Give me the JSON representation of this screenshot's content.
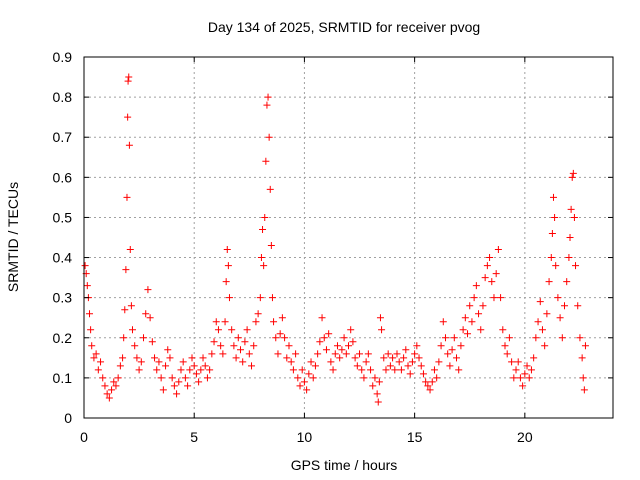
{
  "chart_data": {
    "type": "scatter",
    "title": "Day 134 of 2025, SRMTID for receiver pvog",
    "xlabel": "GPS time / hours",
    "ylabel": "SRMTID / TECUs",
    "xlim": [
      0,
      24
    ],
    "ylim": [
      0,
      0.9
    ],
    "x_ticks": [
      0,
      5,
      10,
      15,
      20
    ],
    "y_ticks": [
      0,
      0.1,
      0.2,
      0.3,
      0.4,
      0.5,
      0.6,
      0.7,
      0.8,
      0.9
    ],
    "x_tick_labels": [
      "0",
      "5",
      "10",
      "15",
      "20"
    ],
    "y_tick_labels": [
      "0",
      "0.1",
      "0.2",
      "0.3",
      "0.4",
      "0.5",
      "0.6",
      "0.7",
      "0.8",
      "0.9"
    ],
    "grid": true,
    "marker": "+",
    "color": "#ff0000",
    "series": [
      {
        "name": "SRMTID",
        "points": [
          [
            0.05,
            0.38
          ],
          [
            0.1,
            0.36
          ],
          [
            0.15,
            0.33
          ],
          [
            0.2,
            0.3
          ],
          [
            0.25,
            0.26
          ],
          [
            0.3,
            0.22
          ],
          [
            0.35,
            0.18
          ],
          [
            0.45,
            0.15
          ],
          [
            0.55,
            0.16
          ],
          [
            0.65,
            0.12
          ],
          [
            0.75,
            0.14
          ],
          [
            0.85,
            0.1
          ],
          [
            0.95,
            0.08
          ],
          [
            1.05,
            0.06
          ],
          [
            1.15,
            0.05
          ],
          [
            1.25,
            0.07
          ],
          [
            1.35,
            0.09
          ],
          [
            1.45,
            0.08
          ],
          [
            1.55,
            0.1
          ],
          [
            1.65,
            0.13
          ],
          [
            1.75,
            0.15
          ],
          [
            1.8,
            0.2
          ],
          [
            1.85,
            0.27
          ],
          [
            1.9,
            0.37
          ],
          [
            1.95,
            0.55
          ],
          [
            1.98,
            0.75
          ],
          [
            2.0,
            0.84
          ],
          [
            2.03,
            0.85
          ],
          [
            2.06,
            0.68
          ],
          [
            2.1,
            0.42
          ],
          [
            2.15,
            0.28
          ],
          [
            2.2,
            0.22
          ],
          [
            2.3,
            0.18
          ],
          [
            2.4,
            0.15
          ],
          [
            2.5,
            0.12
          ],
          [
            2.6,
            0.14
          ],
          [
            2.7,
            0.2
          ],
          [
            2.8,
            0.26
          ],
          [
            2.9,
            0.32
          ],
          [
            3.0,
            0.25
          ],
          [
            3.1,
            0.19
          ],
          [
            3.2,
            0.15
          ],
          [
            3.3,
            0.12
          ],
          [
            3.4,
            0.14
          ],
          [
            3.5,
            0.1
          ],
          [
            3.6,
            0.07
          ],
          [
            3.7,
            0.13
          ],
          [
            3.8,
            0.17
          ],
          [
            3.9,
            0.15
          ],
          [
            4.0,
            0.1
          ],
          [
            4.1,
            0.08
          ],
          [
            4.2,
            0.06
          ],
          [
            4.3,
            0.09
          ],
          [
            4.4,
            0.12
          ],
          [
            4.5,
            0.14
          ],
          [
            4.6,
            0.1
          ],
          [
            4.7,
            0.08
          ],
          [
            4.8,
            0.12
          ],
          [
            4.9,
            0.15
          ],
          [
            5.0,
            0.13
          ],
          [
            5.1,
            0.11
          ],
          [
            5.2,
            0.09
          ],
          [
            5.3,
            0.12
          ],
          [
            5.4,
            0.15
          ],
          [
            5.5,
            0.13
          ],
          [
            5.6,
            0.1
          ],
          [
            5.7,
            0.12
          ],
          [
            5.8,
            0.16
          ],
          [
            5.9,
            0.19
          ],
          [
            6.0,
            0.24
          ],
          [
            6.1,
            0.22
          ],
          [
            6.2,
            0.18
          ],
          [
            6.3,
            0.16
          ],
          [
            6.4,
            0.24
          ],
          [
            6.45,
            0.34
          ],
          [
            6.5,
            0.42
          ],
          [
            6.55,
            0.38
          ],
          [
            6.6,
            0.3
          ],
          [
            6.7,
            0.22
          ],
          [
            6.8,
            0.18
          ],
          [
            6.9,
            0.15
          ],
          [
            7.0,
            0.2
          ],
          [
            7.1,
            0.17
          ],
          [
            7.2,
            0.14
          ],
          [
            7.3,
            0.19
          ],
          [
            7.4,
            0.22
          ],
          [
            7.5,
            0.16
          ],
          [
            7.6,
            0.13
          ],
          [
            7.7,
            0.18
          ],
          [
            7.8,
            0.24
          ],
          [
            7.9,
            0.26
          ],
          [
            8.0,
            0.3
          ],
          [
            8.05,
            0.4
          ],
          [
            8.1,
            0.47
          ],
          [
            8.15,
            0.38
          ],
          [
            8.2,
            0.5
          ],
          [
            8.25,
            0.64
          ],
          [
            8.3,
            0.78
          ],
          [
            8.35,
            0.8
          ],
          [
            8.4,
            0.7
          ],
          [
            8.45,
            0.57
          ],
          [
            8.5,
            0.43
          ],
          [
            8.55,
            0.3
          ],
          [
            8.6,
            0.24
          ],
          [
            8.7,
            0.2
          ],
          [
            8.8,
            0.16
          ],
          [
            8.9,
            0.21
          ],
          [
            9.0,
            0.25
          ],
          [
            9.1,
            0.2
          ],
          [
            9.2,
            0.15
          ],
          [
            9.3,
            0.18
          ],
          [
            9.4,
            0.14
          ],
          [
            9.5,
            0.12
          ],
          [
            9.6,
            0.16
          ],
          [
            9.7,
            0.1
          ],
          [
            9.8,
            0.08
          ],
          [
            9.9,
            0.12
          ],
          [
            10.0,
            0.09
          ],
          [
            10.1,
            0.07
          ],
          [
            10.2,
            0.11
          ],
          [
            10.3,
            0.14
          ],
          [
            10.4,
            0.1
          ],
          [
            10.5,
            0.13
          ],
          [
            10.6,
            0.16
          ],
          [
            10.7,
            0.19
          ],
          [
            10.8,
            0.25
          ],
          [
            10.9,
            0.2
          ],
          [
            11.0,
            0.17
          ],
          [
            11.1,
            0.21
          ],
          [
            11.2,
            0.14
          ],
          [
            11.3,
            0.12
          ],
          [
            11.4,
            0.16
          ],
          [
            11.5,
            0.18
          ],
          [
            11.6,
            0.15
          ],
          [
            11.7,
            0.17
          ],
          [
            11.8,
            0.2
          ],
          [
            11.9,
            0.16
          ],
          [
            12.0,
            0.18
          ],
          [
            12.1,
            0.22
          ],
          [
            12.2,
            0.19
          ],
          [
            12.3,
            0.15
          ],
          [
            12.4,
            0.13
          ],
          [
            12.5,
            0.16
          ],
          [
            12.6,
            0.12
          ],
          [
            12.7,
            0.1
          ],
          [
            12.8,
            0.14
          ],
          [
            12.9,
            0.16
          ],
          [
            13.0,
            0.12
          ],
          [
            13.1,
            0.08
          ],
          [
            13.2,
            0.1
          ],
          [
            13.3,
            0.06
          ],
          [
            13.35,
            0.04
          ],
          [
            13.4,
            0.09
          ],
          [
            13.45,
            0.25
          ],
          [
            13.5,
            0.22
          ],
          [
            13.6,
            0.15
          ],
          [
            13.7,
            0.12
          ],
          [
            13.8,
            0.16
          ],
          [
            13.9,
            0.13
          ],
          [
            14.0,
            0.15
          ],
          [
            14.1,
            0.12
          ],
          [
            14.2,
            0.16
          ],
          [
            14.3,
            0.14
          ],
          [
            14.4,
            0.12
          ],
          [
            14.5,
            0.15
          ],
          [
            14.6,
            0.17
          ],
          [
            14.7,
            0.13
          ],
          [
            14.8,
            0.11
          ],
          [
            14.9,
            0.14
          ],
          [
            15.0,
            0.16
          ],
          [
            15.1,
            0.18
          ],
          [
            15.2,
            0.15
          ],
          [
            15.3,
            0.13
          ],
          [
            15.4,
            0.11
          ],
          [
            15.5,
            0.09
          ],
          [
            15.6,
            0.08
          ],
          [
            15.7,
            0.07
          ],
          [
            15.8,
            0.09
          ],
          [
            15.9,
            0.12
          ],
          [
            16.0,
            0.1
          ],
          [
            16.1,
            0.14
          ],
          [
            16.2,
            0.18
          ],
          [
            16.3,
            0.24
          ],
          [
            16.4,
            0.2
          ],
          [
            16.5,
            0.16
          ],
          [
            16.6,
            0.13
          ],
          [
            16.7,
            0.17
          ],
          [
            16.8,
            0.2
          ],
          [
            16.9,
            0.15
          ],
          [
            17.0,
            0.12
          ],
          [
            17.1,
            0.18
          ],
          [
            17.2,
            0.22
          ],
          [
            17.3,
            0.25
          ],
          [
            17.4,
            0.21
          ],
          [
            17.5,
            0.28
          ],
          [
            17.6,
            0.24
          ],
          [
            17.7,
            0.3
          ],
          [
            17.8,
            0.33
          ],
          [
            17.9,
            0.26
          ],
          [
            18.0,
            0.22
          ],
          [
            18.1,
            0.28
          ],
          [
            18.2,
            0.35
          ],
          [
            18.3,
            0.38
          ],
          [
            18.4,
            0.4
          ],
          [
            18.5,
            0.34
          ],
          [
            18.6,
            0.3
          ],
          [
            18.7,
            0.36
          ],
          [
            18.8,
            0.42
          ],
          [
            18.9,
            0.3
          ],
          [
            19.0,
            0.22
          ],
          [
            19.1,
            0.18
          ],
          [
            19.2,
            0.16
          ],
          [
            19.3,
            0.2
          ],
          [
            19.4,
            0.14
          ],
          [
            19.5,
            0.1
          ],
          [
            19.6,
            0.12
          ],
          [
            19.7,
            0.14
          ],
          [
            19.8,
            0.1
          ],
          [
            19.9,
            0.08
          ],
          [
            20.0,
            0.11
          ],
          [
            20.1,
            0.13
          ],
          [
            20.2,
            0.1
          ],
          [
            20.3,
            0.12
          ],
          [
            20.4,
            0.15
          ],
          [
            20.5,
            0.2
          ],
          [
            20.6,
            0.24
          ],
          [
            20.7,
            0.29
          ],
          [
            20.8,
            0.22
          ],
          [
            20.9,
            0.18
          ],
          [
            21.0,
            0.26
          ],
          [
            21.1,
            0.34
          ],
          [
            21.2,
            0.4
          ],
          [
            21.25,
            0.46
          ],
          [
            21.3,
            0.55
          ],
          [
            21.35,
            0.5
          ],
          [
            21.4,
            0.38
          ],
          [
            21.5,
            0.3
          ],
          [
            21.6,
            0.25
          ],
          [
            21.7,
            0.2
          ],
          [
            21.8,
            0.28
          ],
          [
            21.9,
            0.34
          ],
          [
            22.0,
            0.4
          ],
          [
            22.05,
            0.45
          ],
          [
            22.1,
            0.52
          ],
          [
            22.15,
            0.6
          ],
          [
            22.2,
            0.61
          ],
          [
            22.25,
            0.5
          ],
          [
            22.3,
            0.38
          ],
          [
            22.4,
            0.28
          ],
          [
            22.5,
            0.2
          ],
          [
            22.6,
            0.15
          ],
          [
            22.65,
            0.1
          ],
          [
            22.7,
            0.07
          ],
          [
            22.75,
            0.18
          ]
        ]
      }
    ]
  }
}
